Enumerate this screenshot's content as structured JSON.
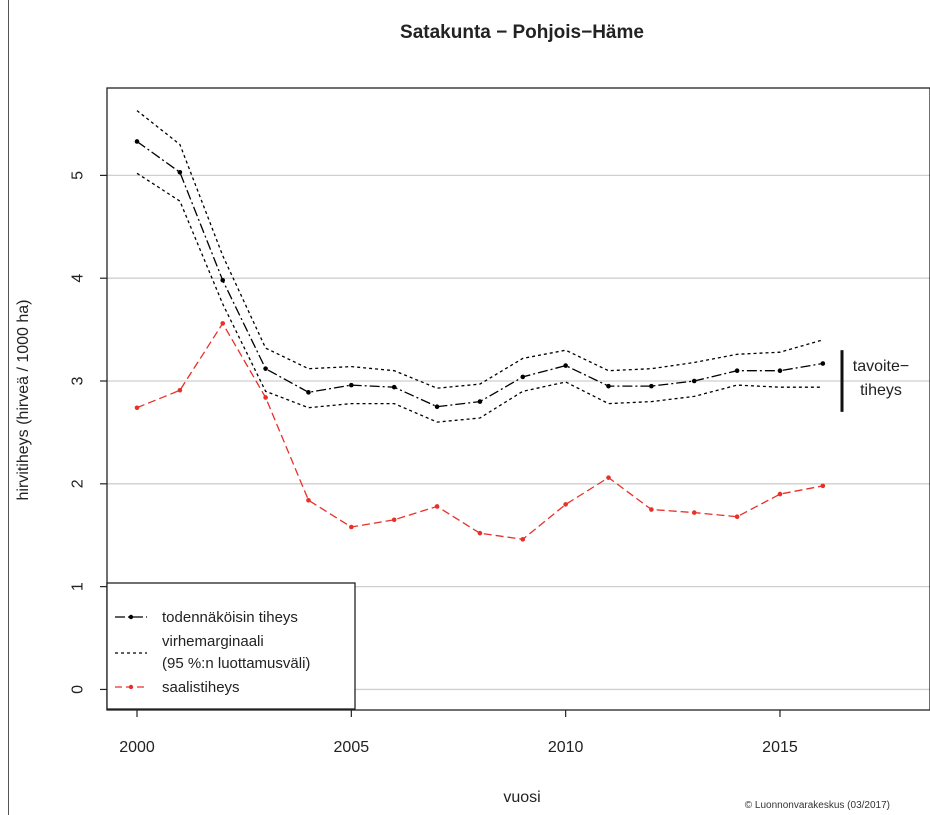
{
  "chart_data": {
    "type": "line",
    "title": "Satakunta − Pohjois−Häme",
    "xlabel": "vuosi",
    "ylabel": "hirvitiheys (hirveä / 1000 ha)",
    "xlim": [
      1999.3,
      2018.5
    ],
    "ylim": [
      -0.2,
      5.85
    ],
    "x_ticks": [
      "2000",
      "2005",
      "2010",
      "2015"
    ],
    "y_ticks": [
      "0",
      "1",
      "2",
      "3",
      "4",
      "5"
    ],
    "grid": "horizontal",
    "x": [
      2000,
      2001,
      2002,
      2003,
      2004,
      2005,
      2006,
      2007,
      2008,
      2009,
      2010,
      2011,
      2012,
      2013,
      2014,
      2015,
      2016
    ],
    "series": [
      {
        "name": "todennäköisin tiheys",
        "color": "#000000",
        "style": "dash-dot",
        "values": [
          5.33,
          5.03,
          3.98,
          3.12,
          2.89,
          2.96,
          2.94,
          2.75,
          2.8,
          3.04,
          3.15,
          2.95,
          2.95,
          3.0,
          3.1,
          3.1,
          3.17
        ]
      },
      {
        "name": "virhemarginaali (95 %:n luottamusväli)",
        "role": "upper",
        "color": "#000000",
        "style": "dotted",
        "values": [
          5.63,
          5.3,
          4.22,
          3.32,
          3.12,
          3.14,
          3.1,
          2.93,
          2.97,
          3.22,
          3.3,
          3.1,
          3.12,
          3.18,
          3.26,
          3.28,
          3.4
        ]
      },
      {
        "name": "virhemarginaali (95 %:n luottamusväli)",
        "role": "lower",
        "color": "#000000",
        "style": "dotted",
        "values": [
          5.02,
          4.75,
          3.75,
          2.9,
          2.74,
          2.78,
          2.78,
          2.6,
          2.64,
          2.9,
          2.99,
          2.78,
          2.8,
          2.85,
          2.96,
          2.94,
          2.94
        ]
      },
      {
        "name": "saalistiheys",
        "color": "#e8302a",
        "style": "dashed",
        "values": [
          2.74,
          2.91,
          3.56,
          2.84,
          1.84,
          1.58,
          1.65,
          1.78,
          1.52,
          1.46,
          1.8,
          2.06,
          1.75,
          1.72,
          1.68,
          1.9,
          1.98
        ]
      }
    ],
    "target_band": {
      "label_line1": "tavoite−",
      "label_line2": "tiheys",
      "from": 2.7,
      "to": 3.3
    },
    "legend": {
      "position": "bottom-left",
      "entries": [
        {
          "label": "todennäköisin tiheys",
          "style": "dash-dot",
          "color": "#000000"
        },
        {
          "label": "virhemarginaali",
          "label2": "(95 %:n luottamusväli)",
          "style": "dotted",
          "color": "#000000"
        },
        {
          "label": "saalistiheys",
          "style": "dashed",
          "color": "#e8302a"
        }
      ]
    },
    "copyright": "© Luonnonvarakeskus (03/2017)"
  }
}
